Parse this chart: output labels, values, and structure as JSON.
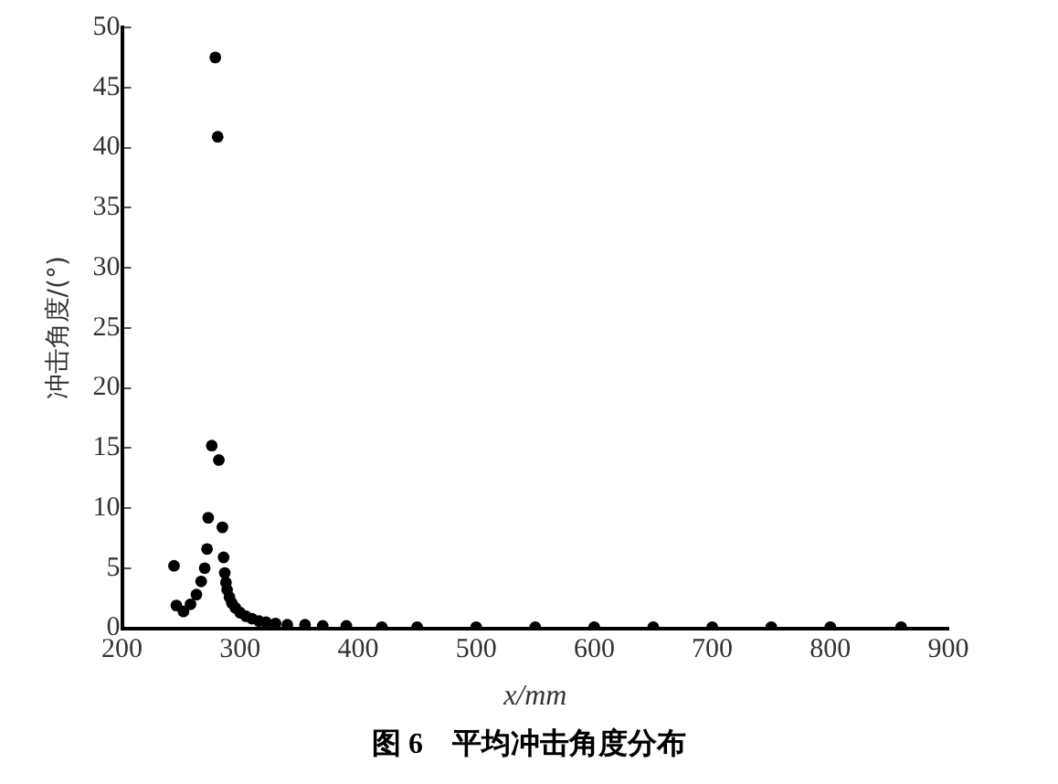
{
  "chart_data": {
    "type": "scatter",
    "xlabel": "x/mm",
    "ylabel": "冲击角度/(°)",
    "annotations": [
      "图 6　平均冲击角度分布"
    ],
    "xlim": [
      200,
      900
    ],
    "xticks": [
      200,
      300,
      400,
      500,
      600,
      700,
      800,
      900
    ],
    "ylim": [
      0,
      50
    ],
    "yticks": [
      0,
      5,
      10,
      15,
      20,
      25,
      30,
      35,
      40,
      45,
      50
    ],
    "grid": false,
    "legend": false,
    "marker": "circle",
    "series": [
      {
        "color": "#000000",
        "x": [
          244,
          246,
          252,
          258,
          263,
          267,
          270,
          272,
          273,
          276,
          279,
          281,
          282,
          285,
          286,
          287,
          288,
          289,
          291,
          293,
          296,
          300,
          305,
          310,
          316,
          322,
          330,
          340,
          355,
          370,
          390,
          420,
          450,
          500,
          550,
          600,
          650,
          700,
          750,
          800,
          860
        ],
        "values": [
          5.2,
          1.9,
          1.4,
          2.0,
          2.8,
          3.9,
          5.0,
          6.6,
          9.2,
          15.2,
          47.5,
          40.9,
          14.0,
          8.4,
          5.9,
          4.6,
          3.8,
          3.2,
          2.6,
          2.1,
          1.7,
          1.3,
          1.0,
          0.8,
          0.6,
          0.5,
          0.4,
          0.3,
          0.3,
          0.2,
          0.2,
          0.1,
          0.1,
          0.1,
          0.1,
          0.1,
          0.1,
          0.1,
          0.1,
          0.1,
          0.1
        ]
      }
    ]
  }
}
